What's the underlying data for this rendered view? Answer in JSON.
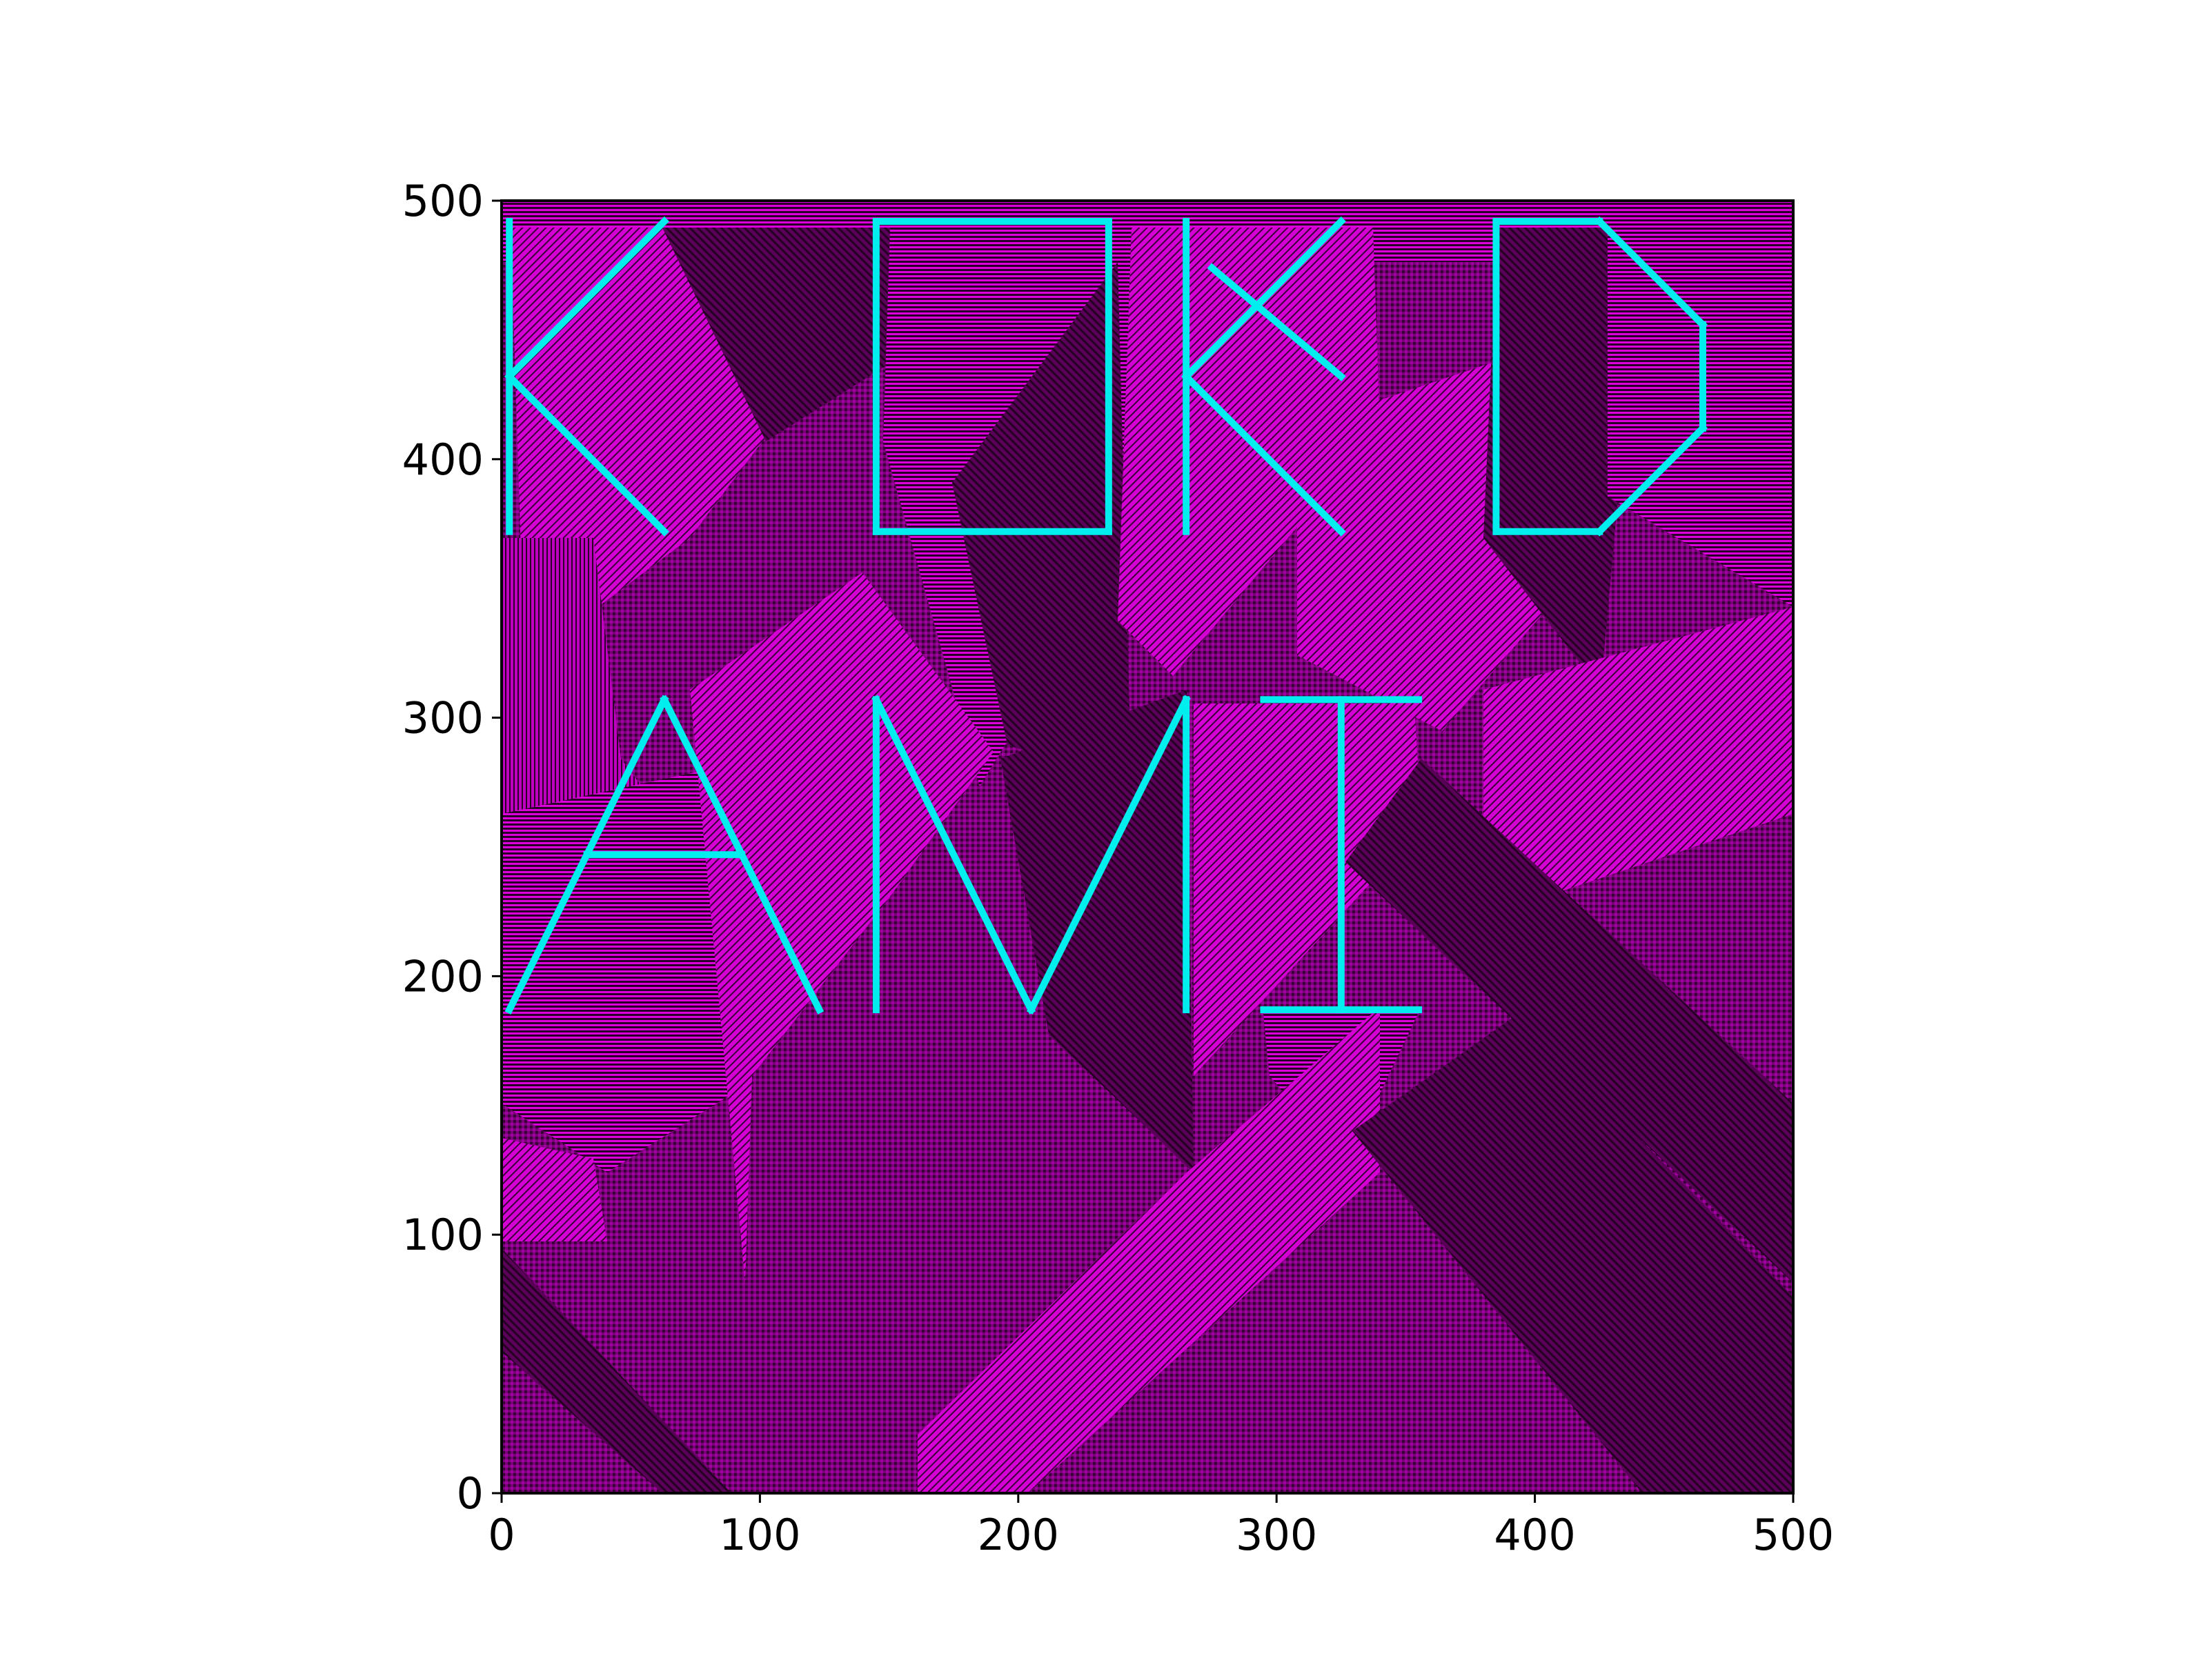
{
  "chart_data": {
    "type": "heatmap",
    "title": "",
    "xlabel": "",
    "ylabel": "",
    "xlim": [
      0,
      500
    ],
    "ylim": [
      0,
      500
    ],
    "xticks": [
      0,
      100,
      200,
      300,
      400,
      500
    ],
    "yticks": [
      0,
      100,
      200,
      300,
      400,
      500
    ],
    "xtick_labels": [
      "0",
      "100",
      "200",
      "300",
      "400",
      "500"
    ],
    "ytick_labels": [
      "0",
      "100",
      "200",
      "300",
      "400",
      "500"
    ],
    "grid": false,
    "legend": "none",
    "colors": {
      "background": "#ffffff",
      "pattern_bright": "#dd00dd",
      "pattern_dark": "#2a0028",
      "text_overlay": "#00eeee",
      "axis": "#000000"
    },
    "overlay_lines": [
      {
        "x": [
          3,
          3
        ],
        "y": [
          492,
          372
        ]
      },
      {
        "x": [
          3,
          63
        ],
        "y": [
          432,
          492
        ]
      },
      {
        "x": [
          3,
          63
        ],
        "y": [
          432,
          372
        ]
      },
      {
        "x": [
          145,
          235
        ],
        "y": [
          492,
          492
        ]
      },
      {
        "x": [
          235,
          235
        ],
        "y": [
          492,
          372
        ]
      },
      {
        "x": [
          235,
          145
        ],
        "y": [
          372,
          372
        ]
      },
      {
        "x": [
          145,
          145
        ],
        "y": [
          372,
          492
        ]
      },
      {
        "x": [
          265,
          265
        ],
        "y": [
          492,
          372
        ]
      },
      {
        "x": [
          265,
          325
        ],
        "y": [
          432,
          492
        ]
      },
      {
        "x": [
          265,
          325
        ],
        "y": [
          432,
          372
        ]
      },
      {
        "x": [
          275,
          325
        ],
        "y": [
          474,
          432
        ]
      },
      {
        "x": [
          385,
          425
        ],
        "y": [
          492,
          492
        ]
      },
      {
        "x": [
          425,
          465
        ],
        "y": [
          492,
          452
        ]
      },
      {
        "x": [
          465,
          465
        ],
        "y": [
          452,
          412
        ]
      },
      {
        "x": [
          465,
          425
        ],
        "y": [
          412,
          372
        ]
      },
      {
        "x": [
          425,
          385
        ],
        "y": [
          372,
          372
        ]
      },
      {
        "x": [
          385,
          385
        ],
        "y": [
          372,
          492
        ]
      },
      {
        "x": [
          3,
          63
        ],
        "y": [
          187,
          307
        ]
      },
      {
        "x": [
          63,
          123
        ],
        "y": [
          307,
          187
        ]
      },
      {
        "x": [
          33,
          93
        ],
        "y": [
          247,
          247
        ]
      },
      {
        "x": [
          145,
          145
        ],
        "y": [
          187,
          307
        ]
      },
      {
        "x": [
          145,
          205
        ],
        "y": [
          307,
          187
        ]
      },
      {
        "x": [
          205,
          265
        ],
        "y": [
          187,
          307
        ]
      },
      {
        "x": [
          265,
          265
        ],
        "y": [
          307,
          187
        ]
      },
      {
        "x": [
          295,
          355
        ],
        "y": [
          307,
          307
        ]
      },
      {
        "x": [
          325,
          325
        ],
        "y": [
          307,
          187
        ]
      },
      {
        "x": [
          295,
          355
        ],
        "y": [
          187,
          187
        ]
      }
    ]
  }
}
